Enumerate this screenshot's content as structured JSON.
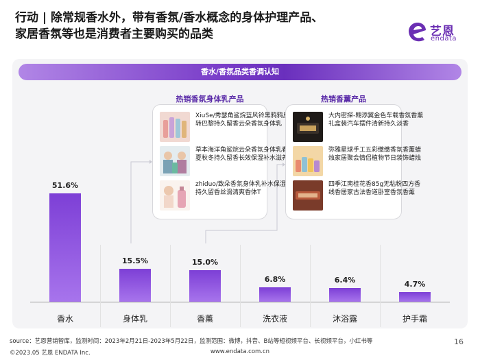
{
  "headline": {
    "line1": "行动 | 除常规香水外，带有香氛/香水概念的身体护理产品、",
    "line2": "家居香氛等也是消费者主要购买的品类"
  },
  "logo": {
    "cn": "艺恩",
    "en": "endata",
    "color": "#6b2fb3"
  },
  "banner_title": "香水/香氛品类香调认知",
  "cards": {
    "body_lotion": {
      "title": "热销香氛身体乳产品",
      "items": [
        {
          "text": "XiuSe/秀瑟角鲨烷蓝风铃黑鸦鸦反转巴黎持久留香云朵香氛身体乳"
        },
        {
          "text": "草本海洋角鲨烷云朵香氛身体乳春夏秋冬持久留香长效保湿补水滋养"
        },
        {
          "text": "zhiduo/致朵香氛身体乳补水保湿持久留香丝滑清爽香体T"
        }
      ]
    },
    "home_fragrance": {
      "title": "热销香薰产品",
      "items": [
        {
          "text": "大内密探-翱添翼金色车载香氛香薰礼盒装汽车摆件清新持久淡香"
        },
        {
          "text": "弥雅星球手工五彩缴缴香氛香薰蜡烛家居聚会情侣植物节日装饰蜡烛"
        },
        {
          "text": "四季江南桂花香85g无粘粉四方香线香居家古法香道卧室香氛香薰"
        }
      ]
    }
  },
  "chart_data": {
    "type": "bar",
    "categories": [
      "香水",
      "身体乳",
      "香薰",
      "洗衣液",
      "沐浴露",
      "护手霜"
    ],
    "values": [
      51.6,
      15.5,
      15.0,
      6.8,
      6.4,
      4.7
    ],
    "value_labels": [
      "51.6%",
      "15.5%",
      "15.0%",
      "6.8%",
      "6.4%",
      "4.7%"
    ],
    "ylim": [
      0,
      60
    ],
    "bar_color": "#8a4fe0"
  },
  "footer": {
    "source": "source：艺恩营销智库，监测时间：2023年2月21日-2023年5月22日，监测范围：微博，抖音、B站等短视频平台、长视频平台，小红书等",
    "copyright": "©2023.05 艺恩 ENDATA Inc.",
    "url": "www.endata.com.cn",
    "page": "16"
  }
}
